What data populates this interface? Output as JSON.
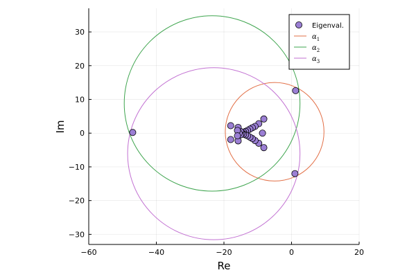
{
  "chart_data": {
    "type": "scatter",
    "xlabel": "Re",
    "ylabel": "Im",
    "xlim": [
      -60,
      20
    ],
    "ylim": [
      -33,
      37
    ],
    "x_ticks": [
      -60,
      -40,
      -20,
      0,
      20
    ],
    "y_ticks": [
      -30,
      -20,
      -10,
      0,
      10,
      20,
      30
    ],
    "x_tick_labels": [
      "−60",
      "−40",
      "−20",
      "0",
      "20"
    ],
    "y_tick_labels": [
      "−30",
      "−20",
      "−10",
      "0",
      "10",
      "20",
      "30"
    ],
    "grid": true,
    "legend_position": "top-right",
    "aspect": "equal",
    "series": [
      {
        "name": "Eigenval.",
        "kind": "points",
        "color": "#9b7fd4",
        "points": [
          {
            "x": 1.2,
            "y": 12.6
          },
          {
            "x": 1.0,
            "y": -12.0
          },
          {
            "x": -47.0,
            "y": 0.2
          },
          {
            "x": -8.2,
            "y": 4.2
          },
          {
            "x": -8.2,
            "y": -4.3
          },
          {
            "x": -8.6,
            "y": 0.0
          },
          {
            "x": -9.7,
            "y": 2.8
          },
          {
            "x": -9.7,
            "y": -3.0
          },
          {
            "x": -10.8,
            "y": 2.0
          },
          {
            "x": -10.8,
            "y": -2.2
          },
          {
            "x": -11.6,
            "y": 1.6
          },
          {
            "x": -11.6,
            "y": -1.6
          },
          {
            "x": -12.3,
            "y": 1.2
          },
          {
            "x": -12.3,
            "y": -1.2
          },
          {
            "x": -13.0,
            "y": 0.8
          },
          {
            "x": -13.0,
            "y": -0.8
          },
          {
            "x": -13.6,
            "y": 0.5
          },
          {
            "x": -13.6,
            "y": -0.5
          },
          {
            "x": -14.2,
            "y": 0.3
          },
          {
            "x": -14.2,
            "y": -0.3
          },
          {
            "x": -14.7,
            "y": 0.1
          },
          {
            "x": -14.7,
            "y": -0.1
          },
          {
            "x": -15.1,
            "y": 0.5
          },
          {
            "x": -15.1,
            "y": -0.5
          },
          {
            "x": -15.5,
            "y": 0.0
          },
          {
            "x": -15.8,
            "y": 1.7
          },
          {
            "x": -15.8,
            "y": -2.3
          },
          {
            "x": -16.0,
            "y": 0.8
          },
          {
            "x": -16.0,
            "y": -0.8
          },
          {
            "x": -18.0,
            "y": 2.2
          },
          {
            "x": -18.0,
            "y": -1.9
          }
        ]
      },
      {
        "name": "α",
        "name_subscript": "1",
        "kind": "circle",
        "color": "#e26f46",
        "center": [
          -5,
          0.4
        ],
        "radius": 14.6
      },
      {
        "name": "α",
        "name_subscript": "2",
        "kind": "circle",
        "color": "#3da44d",
        "center": [
          -23.5,
          8.8
        ],
        "radius": 26.0
      },
      {
        "name": "α",
        "name_subscript": "3",
        "kind": "circle",
        "color": "#c271d2",
        "center": [
          -23,
          -6.1
        ],
        "radius": 25.5
      }
    ]
  }
}
